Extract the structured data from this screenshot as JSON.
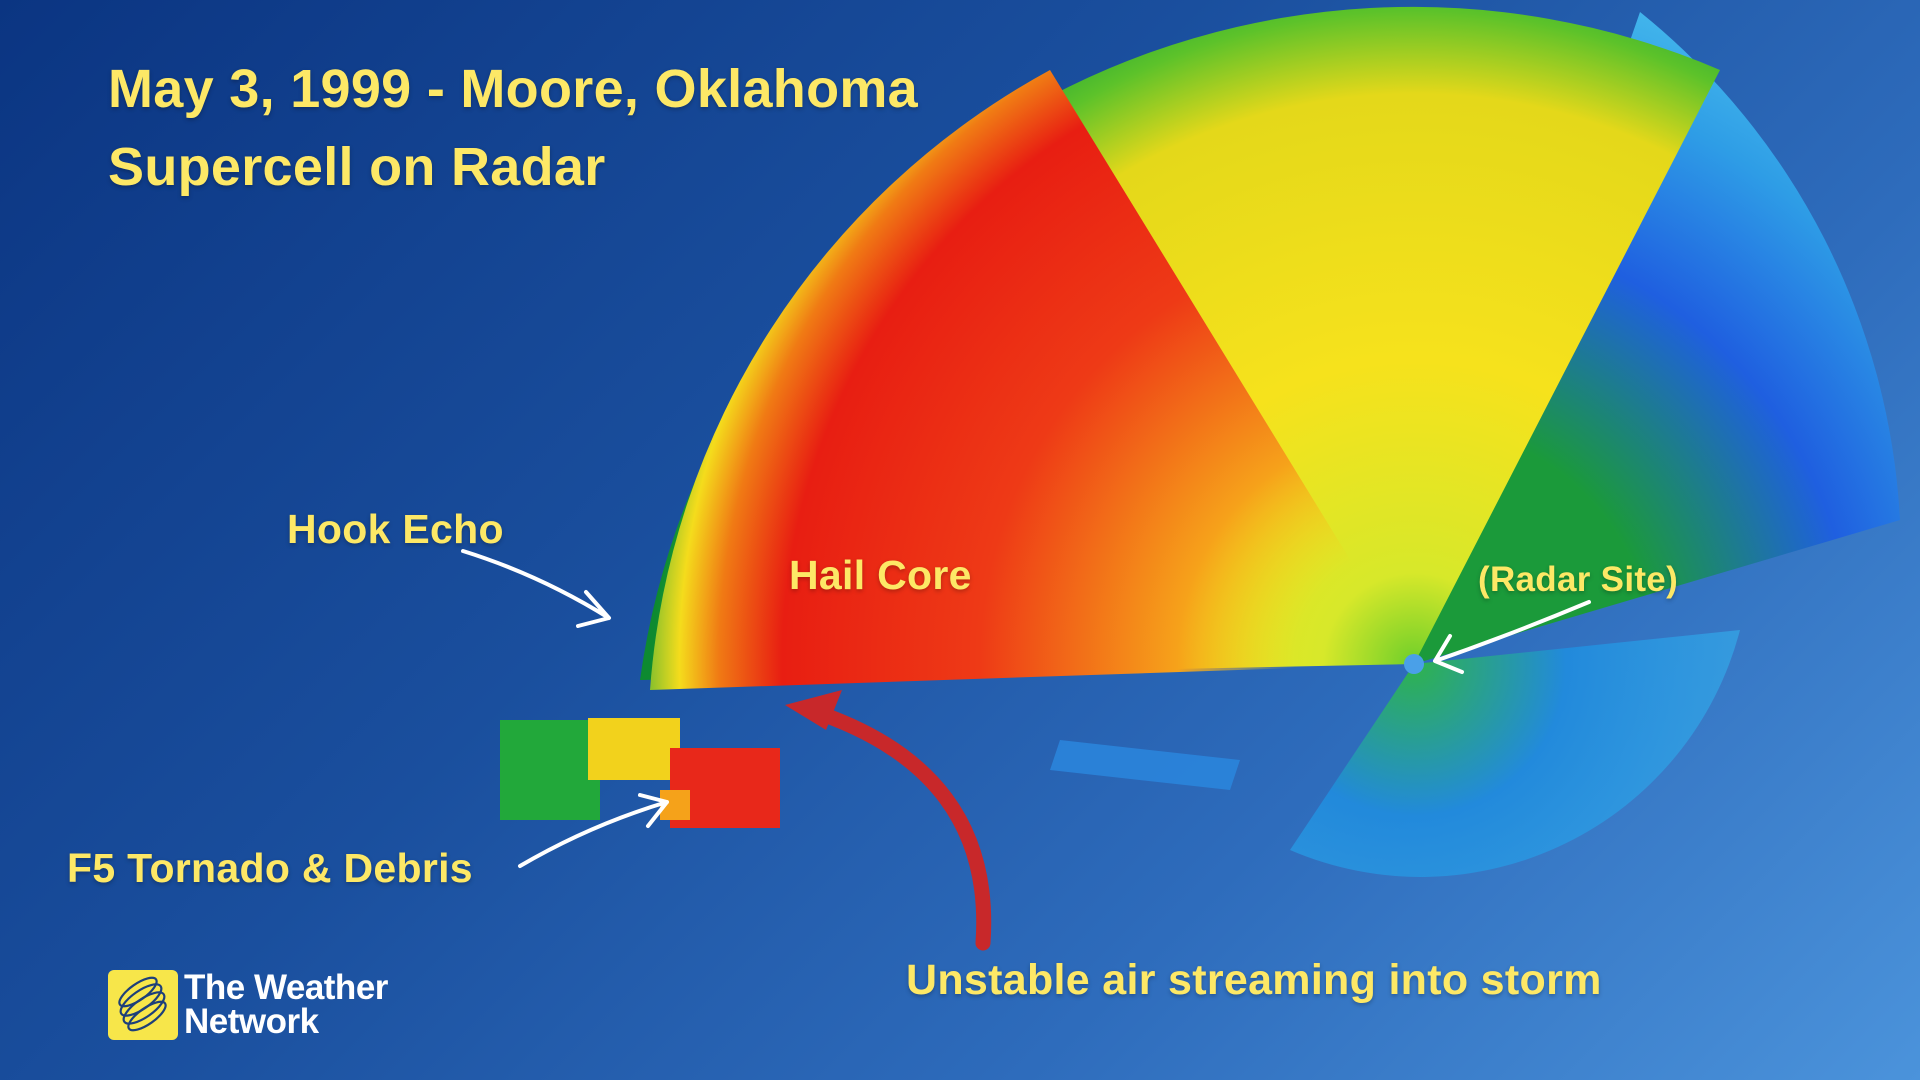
{
  "title": {
    "line1": "May 3, 1999 - Moore, Oklahoma",
    "line2": "Supercell on Radar"
  },
  "annotations": {
    "hook_echo": "Hook Echo",
    "hail_core": "Hail Core",
    "radar_site": "(Radar Site)",
    "tornado": "F5 Tornado & Debris",
    "inflow": "Unstable air streaming into storm"
  },
  "logo": {
    "line1": "The Weather",
    "line2": "Network",
    "icon": "globe-swirl-icon"
  },
  "colors": {
    "label": "#fde866",
    "inflow_arrow": "#c8282a",
    "pointer_arrows": "#ffffff",
    "logo_box": "#f7e64a"
  }
}
